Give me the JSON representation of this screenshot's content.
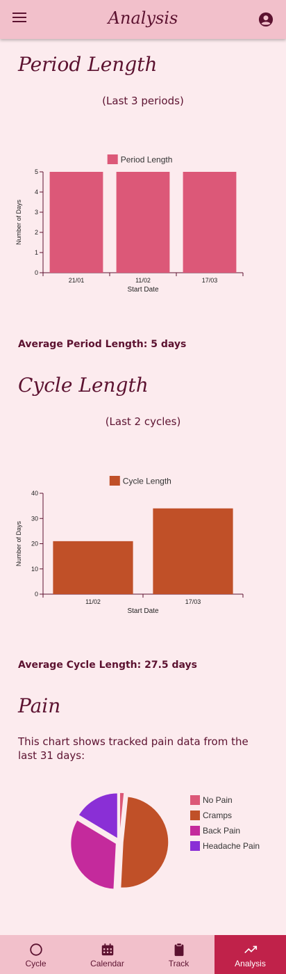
{
  "appbar": {
    "title": "Analysis"
  },
  "period": {
    "heading": "Period Length",
    "subtitle": "(Last 3 periods)",
    "average": "Average Period Length: 5 days"
  },
  "cycle": {
    "heading": "Cycle Length",
    "subtitle": "(Last 2 cycles)",
    "average": "Average Cycle Length: 27.5 days"
  },
  "pain": {
    "heading": "Pain",
    "description": "This chart shows tracked pain data from the last 31 days:"
  },
  "nav": {
    "items": [
      {
        "label": "Cycle",
        "icon": "circle-icon"
      },
      {
        "label": "Calendar",
        "icon": "calendar-icon"
      },
      {
        "label": "Track",
        "icon": "clipboard-icon"
      },
      {
        "label": "Analysis",
        "icon": "trending-up-icon"
      }
    ],
    "active": "Analysis"
  },
  "colors": {
    "period": "#dc5878",
    "cycle": "#c05028",
    "backpain": "#c42a9c",
    "headache": "#8a2fd6",
    "accent": "#c0224a"
  },
  "chart_data": [
    {
      "type": "bar",
      "categories": [
        "21/01",
        "11/02",
        "17/03"
      ],
      "series": [
        {
          "name": "Period Length",
          "values": [
            5,
            5,
            5
          ]
        }
      ],
      "xlabel": "Start Date",
      "ylabel": "Number of Days",
      "ylim": [
        0,
        5
      ],
      "yticks": [
        0,
        1,
        2,
        3,
        4,
        5
      ],
      "legend": "top",
      "grid": false
    },
    {
      "type": "bar",
      "categories": [
        "11/02",
        "17/03"
      ],
      "series": [
        {
          "name": "Cycle Length",
          "values": [
            21,
            34
          ]
        }
      ],
      "xlabel": "Start Date",
      "ylabel": "Number of Days",
      "ylim": [
        0,
        40
      ],
      "yticks": [
        0,
        10,
        20,
        30,
        40
      ],
      "legend": "top",
      "grid": false
    },
    {
      "type": "pie",
      "labels": [
        "No Pain",
        "Cramps",
        "Back Pain",
        "Headache Pain"
      ],
      "values": [
        0.5,
        15,
        10,
        5
      ],
      "colors": [
        "#dc5878",
        "#c05028",
        "#c42a9c",
        "#8a2fd6"
      ],
      "legend": "right"
    }
  ]
}
